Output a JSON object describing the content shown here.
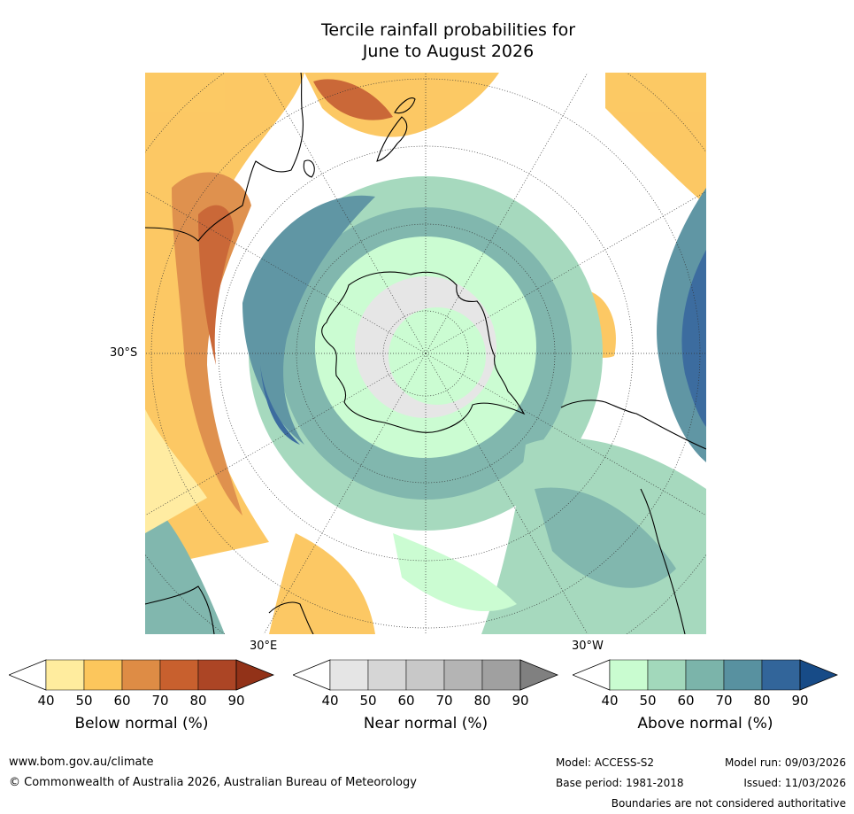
{
  "title_line1": "Tercile rainfall probabilities for",
  "title_line2": "June to August 2026",
  "axis_labels": {
    "lat_30s": "30°S",
    "lon_30e": "30°E",
    "lon_30w": "30°W"
  },
  "colorbars": [
    {
      "title": "Below normal (%)",
      "ticks": [
        "40",
        "50",
        "60",
        "70",
        "80",
        "90"
      ],
      "colors": [
        "#ffffff",
        "#ffec9e",
        "#fcc65c",
        "#de8c45",
        "#c8602e",
        "#ac4525",
        "#923218"
      ]
    },
    {
      "title": "Near normal (%)",
      "ticks": [
        "40",
        "50",
        "60",
        "70",
        "80",
        "90"
      ],
      "colors": [
        "#ffffff",
        "#e5e5e5",
        "#d6d6d6",
        "#c8c8c8",
        "#b4b4b4",
        "#a0a0a0",
        "#808080"
      ]
    },
    {
      "title": "Above normal (%)",
      "ticks": [
        "40",
        "50",
        "60",
        "70",
        "80",
        "90"
      ],
      "colors": [
        "#ffffff",
        "#c9fcd0",
        "#a2d8bb",
        "#7bb4aa",
        "#5891a0",
        "#32659a",
        "#174b87"
      ]
    }
  ],
  "footer": {
    "website": "www.bom.gov.au/climate",
    "copyright": "© Commonwealth of Australia 2026, Australian Bureau of Meteorology",
    "model": "Model: ACCESS-S2",
    "base_period": "Base period: 1981-2018",
    "model_run": "Model run: 09/03/2026",
    "issued": "Issued: 11/03/2026",
    "disclaimer": "Boundaries are not considered authoritative"
  }
}
